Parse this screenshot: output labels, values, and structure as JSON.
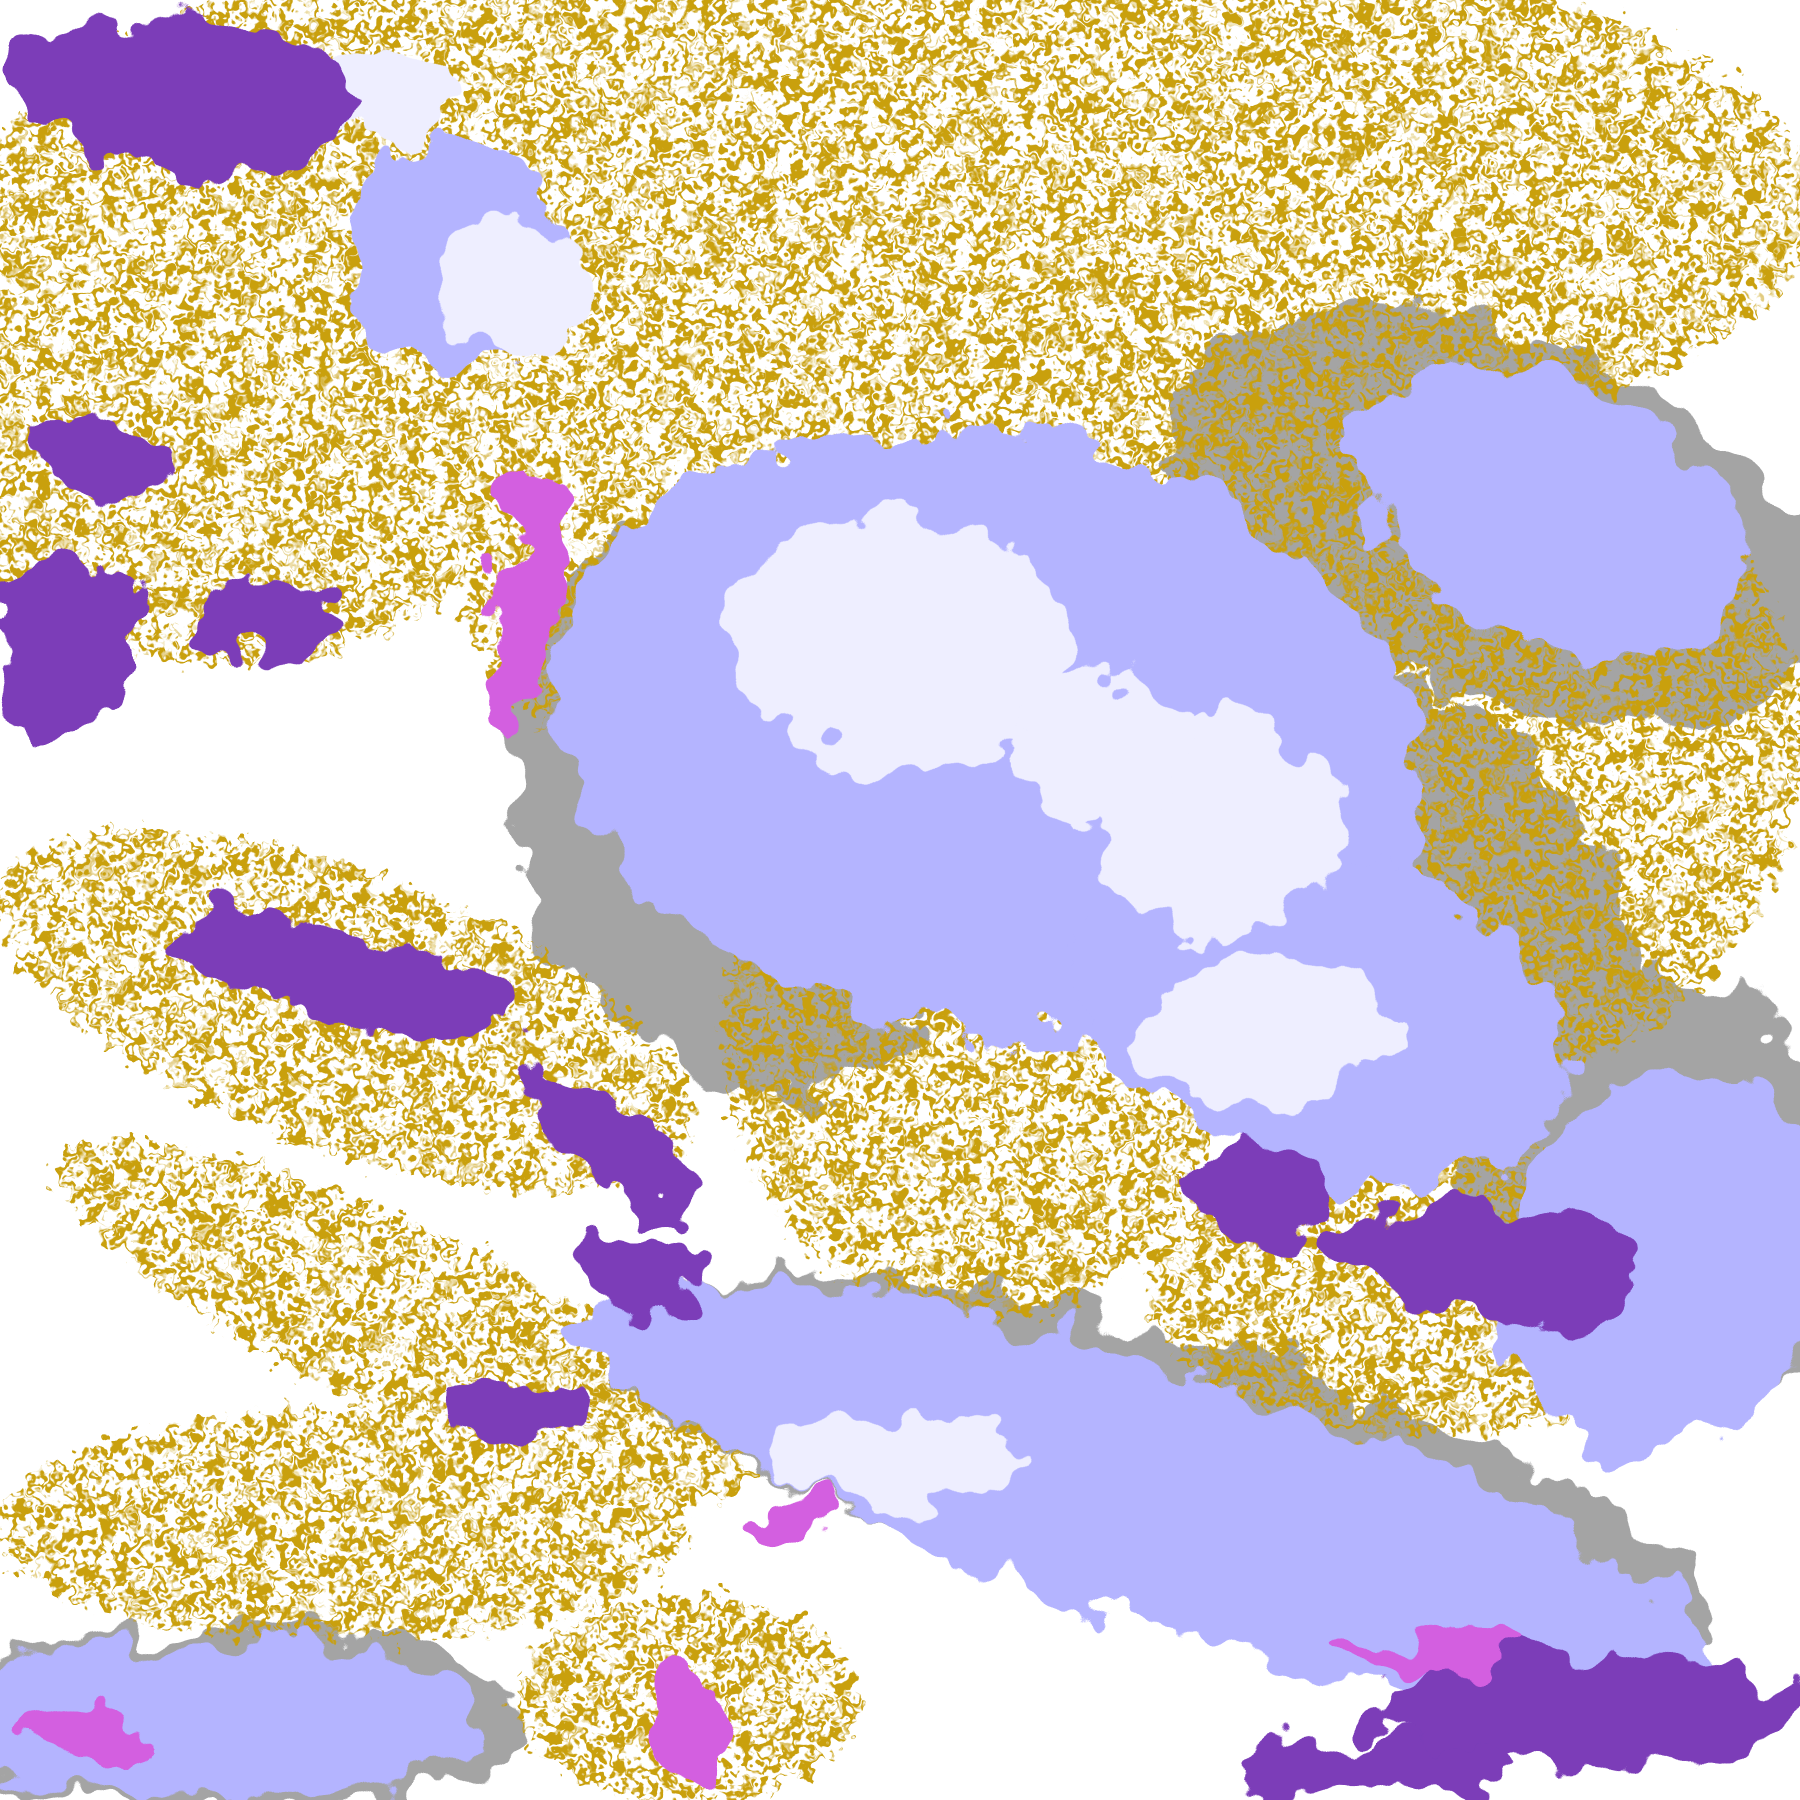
{
  "image": {
    "kind": "false-color satellite cloud classification",
    "palette": {
      "background": "#ffffff",
      "gold": "#c9a010",
      "purple": "#7b3db8",
      "magenta": "#d35ee0",
      "lavender": "#b4b4ff",
      "pale": "#eeeeff",
      "gray": "#a4a4a4"
    }
  }
}
